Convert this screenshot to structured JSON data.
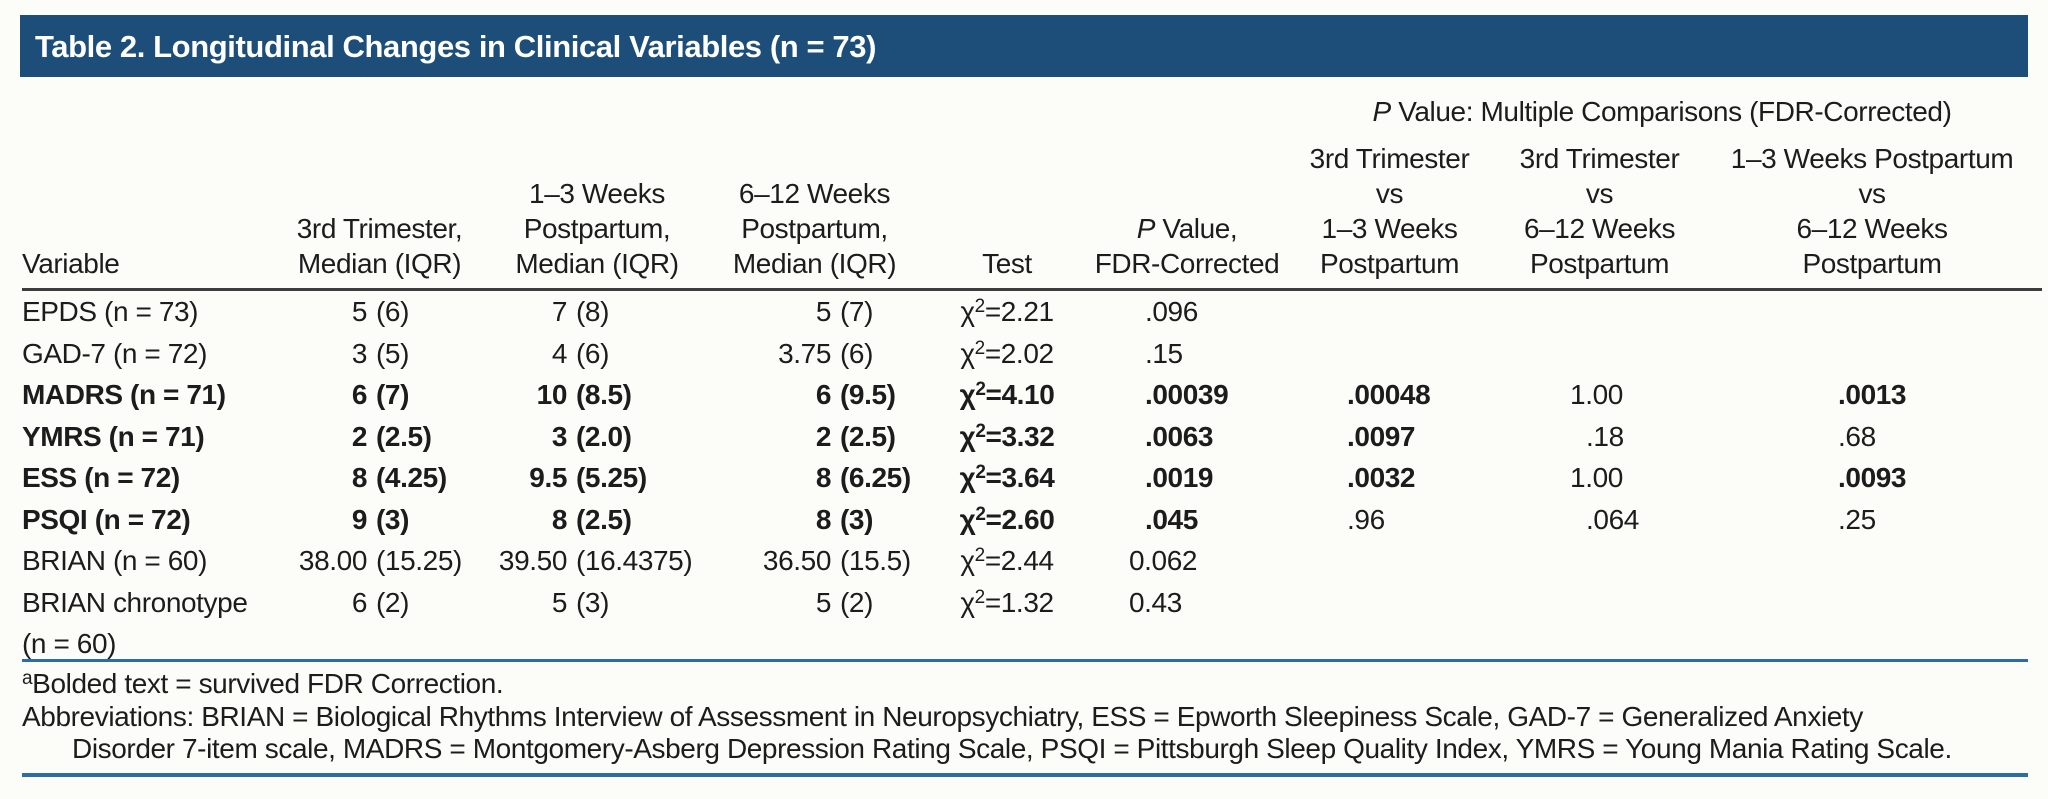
{
  "title_bar": {
    "text": "Table 2. Longitudinal Changes in Clinical Variables (n = 73)",
    "background": "#1d4e79"
  },
  "table": {
    "group_header": "P Value: Multiple Comparisons (FDR-Corrected)",
    "columns": [
      "Variable",
      "3rd Trimester,\nMedian (IQR)",
      "1–3 Weeks\nPostpartum,\nMedian (IQR)",
      "6–12 Weeks\nPostpartum,\nMedian (IQR)",
      "Test",
      "P Value,\nFDR-Corrected",
      "3rd Trimester\nvs\n1–3 Weeks\nPostpartum",
      "3rd Trimester\nvs\n6–12 Weeks\nPostpartum",
      "1–3 Weeks Postpartum\nvs\n6–12 Weeks\nPostpartum"
    ],
    "rows": [
      {
        "variable": "EPDS (n = 73)",
        "bold": false,
        "medians": [
          "5 (6)",
          "7 (8)",
          "5 (7)"
        ],
        "test": "χ^2=2.21",
        "p": ".096",
        "comparisons": [
          {
            "text": "",
            "bold": false
          },
          {
            "text": "",
            "bold": false
          },
          {
            "text": "",
            "bold": false
          }
        ]
      },
      {
        "variable": "GAD-7 (n = 72)",
        "bold": false,
        "medians": [
          "3 (5)",
          "4 (6)",
          "3.75 (6)"
        ],
        "test": "χ^2=2.02",
        "p": ".15",
        "comparisons": [
          {
            "text": "",
            "bold": false
          },
          {
            "text": "",
            "bold": false
          },
          {
            "text": "",
            "bold": false
          }
        ]
      },
      {
        "variable": "MADRS (n = 71)",
        "bold": true,
        "medians": [
          "6 (7)",
          "10 (8.5)",
          "6 (9.5)"
        ],
        "test": "χ^2=4.10",
        "p": ".00039",
        "comparisons": [
          {
            "text": ".00048",
            "bold": true
          },
          {
            "text": "1.00",
            "bold": false
          },
          {
            "text": ".0013",
            "bold": true
          }
        ]
      },
      {
        "variable": "YMRS (n = 71)",
        "bold": true,
        "medians": [
          "2 (2.5)",
          "3 (2.0)",
          "2 (2.5)"
        ],
        "test": "χ^2=3.32",
        "p": ".0063",
        "comparisons": [
          {
            "text": ".0097",
            "bold": true
          },
          {
            "text": ".18",
            "bold": false
          },
          {
            "text": ".68",
            "bold": false
          }
        ]
      },
      {
        "variable": "ESS (n = 72)",
        "bold": true,
        "medians": [
          "8 (4.25)",
          "9.5 (5.25)",
          "8 (6.25)"
        ],
        "test": "χ^2=3.64",
        "p": ".0019",
        "comparisons": [
          {
            "text": ".0032",
            "bold": true
          },
          {
            "text": "1.00",
            "bold": false
          },
          {
            "text": ".0093",
            "bold": true
          }
        ]
      },
      {
        "variable": "PSQI (n = 72)",
        "bold": true,
        "medians": [
          "9 (3)",
          "8 (2.5)",
          "8 (3)"
        ],
        "test": "χ^2=2.60",
        "p": ".045",
        "comparisons": [
          {
            "text": ".96",
            "bold": false
          },
          {
            "text": ".064",
            "bold": false
          },
          {
            "text": ".25",
            "bold": false
          }
        ]
      },
      {
        "variable": "BRIAN (n = 60)",
        "bold": false,
        "medians": [
          "38.00 (15.25)",
          "39.50 (16.4375)",
          "36.50 (15.5)"
        ],
        "test": "χ^2=2.44",
        "p": "0.062",
        "comparisons": [
          {
            "text": "",
            "bold": false
          },
          {
            "text": "",
            "bold": false
          },
          {
            "text": "",
            "bold": false
          }
        ]
      },
      {
        "variable": "BRIAN chronotype (n = 60)",
        "bold": false,
        "medians": [
          "6 (2)",
          "5 (3)",
          "5 (2)"
        ],
        "test": "χ^2=1.32",
        "p": "0.43",
        "comparisons": [
          {
            "text": "",
            "bold": false
          },
          {
            "text": "",
            "bold": false
          },
          {
            "text": "",
            "bold": false
          }
        ]
      }
    ]
  },
  "footnotes": {
    "note_marker": "a",
    "note_text": "Bolded text = survived FDR Correction.",
    "abbrev_line1": "Abbreviations: BRIAN = Biological Rhythms Interview of Assessment in Neuropsychiatry, ESS = Epworth Sleepiness Scale, GAD-7 = Generalized Anxiety",
    "abbrev_line2": "Disorder 7-item scale, MADRS = Montgomery-Asberg Depression Rating Scale, PSQI = Pittsburgh Sleep Quality Index, YMRS = Young Mania Rating Scale."
  },
  "colors": {
    "navy_header": "#1d4e79",
    "blue_rule": "#2e6da4",
    "dark_rule": "#3d3d3d"
  }
}
